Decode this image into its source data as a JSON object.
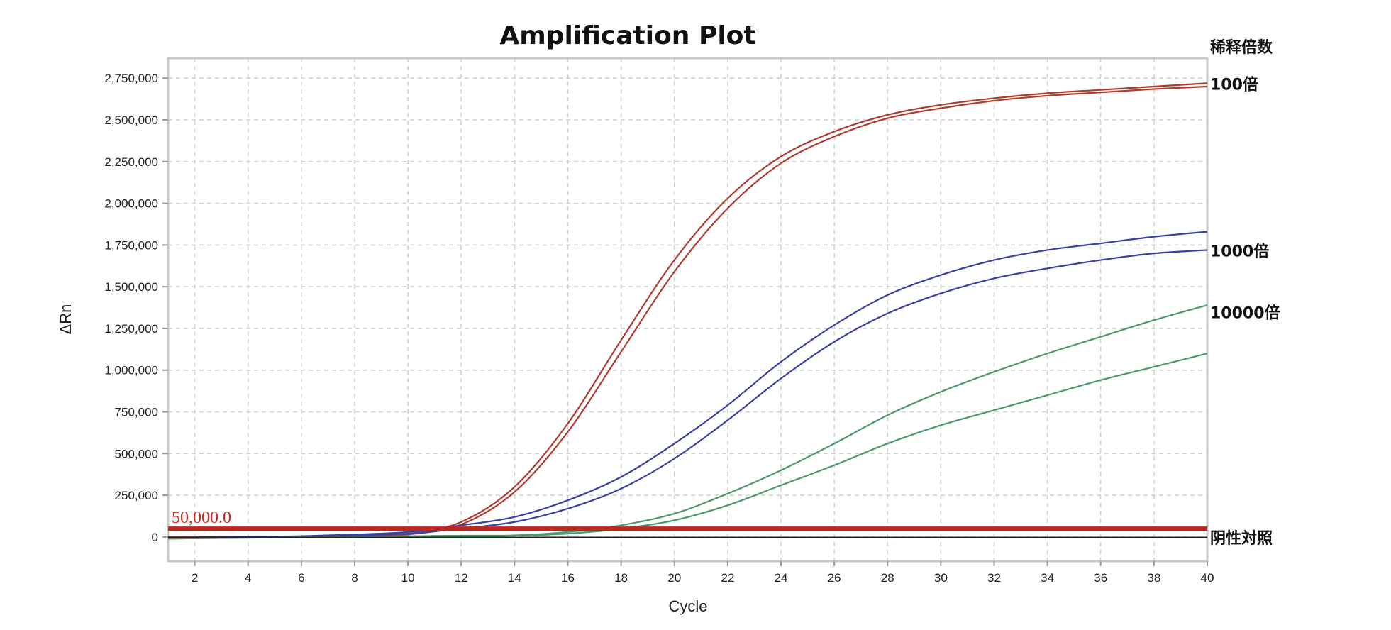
{
  "chart_data": {
    "type": "line",
    "title": "Amplification Plot",
    "xlabel": "Cycle",
    "ylabel": "ΔRn",
    "xlim": [
      1,
      40
    ],
    "ylim": [
      -145000,
      2870000
    ],
    "grid": true,
    "x_ticks": [
      2,
      4,
      6,
      8,
      10,
      12,
      14,
      16,
      18,
      20,
      22,
      24,
      26,
      28,
      30,
      32,
      34,
      36,
      38,
      40
    ],
    "x_tick_labels": [
      "2",
      "4",
      "6",
      "8",
      "10",
      "12",
      "14",
      "16",
      "18",
      "20",
      "22",
      "24",
      "26",
      "28",
      "30",
      "32",
      "34",
      "36",
      "38",
      "40"
    ],
    "y_ticks": [
      0,
      250000,
      500000,
      750000,
      1000000,
      1250000,
      1500000,
      1750000,
      2000000,
      2250000,
      2500000,
      2750000
    ],
    "y_tick_labels": [
      "0",
      "250,000",
      "500,000",
      "750,000",
      "1,000,000",
      "1,250,000",
      "1,500,000",
      "1,750,000",
      "2,000,000",
      "2,250,000",
      "2,500,000",
      "2,750,000"
    ],
    "x": [
      1,
      2,
      4,
      6,
      8,
      10,
      12,
      14,
      16,
      18,
      20,
      22,
      24,
      26,
      28,
      30,
      32,
      34,
      36,
      38,
      40
    ],
    "series": [
      {
        "name": "100倍 a",
        "group": "100倍",
        "color": "#b03a2e",
        "values": [
          0,
          0,
          0,
          0,
          5000,
          20000,
          90000,
          300000,
          680000,
          1180000,
          1660000,
          2030000,
          2280000,
          2430000,
          2530000,
          2590000,
          2630000,
          2660000,
          2680000,
          2700000,
          2720000
        ]
      },
      {
        "name": "100倍 b",
        "group": "100倍",
        "color": "#b03a2e",
        "values": [
          0,
          0,
          0,
          0,
          3000,
          15000,
          75000,
          270000,
          630000,
          1110000,
          1590000,
          1970000,
          2240000,
          2400000,
          2510000,
          2570000,
          2615000,
          2645000,
          2665000,
          2685000,
          2700000
        ]
      },
      {
        "name": "1000倍 a",
        "group": "1000倍",
        "color": "#3b3fa8",
        "values": [
          -5000,
          -3000,
          0,
          5000,
          15000,
          30000,
          70000,
          120000,
          220000,
          360000,
          560000,
          790000,
          1050000,
          1270000,
          1450000,
          1570000,
          1660000,
          1720000,
          1760000,
          1800000,
          1830000
        ]
      },
      {
        "name": "1000倍 b",
        "group": "1000倍",
        "color": "#3b3fa8",
        "values": [
          -5000,
          -3000,
          0,
          4000,
          10000,
          20000,
          50000,
          90000,
          170000,
          290000,
          470000,
          700000,
          950000,
          1170000,
          1340000,
          1460000,
          1550000,
          1610000,
          1660000,
          1700000,
          1720000
        ]
      },
      {
        "name": "10000倍 a",
        "group": "10000倍",
        "color": "#4c9a6a",
        "values": [
          -10000,
          -8000,
          -5000,
          -2000,
          0,
          5000,
          8000,
          10000,
          30000,
          70000,
          140000,
          260000,
          400000,
          560000,
          730000,
          870000,
          990000,
          1100000,
          1200000,
          1300000,
          1390000
        ]
      },
      {
        "name": "10000倍 b",
        "group": "10000倍",
        "color": "#4c9a6a",
        "values": [
          -10000,
          -8000,
          -5000,
          -2000,
          0,
          3000,
          5000,
          8000,
          20000,
          50000,
          100000,
          190000,
          310000,
          430000,
          560000,
          670000,
          760000,
          850000,
          940000,
          1020000,
          1100000
        ]
      },
      {
        "name": "阴性対照",
        "group": "阴性対照",
        "color": "#222222",
        "values": [
          -3000,
          -3000,
          -3000,
          -3000,
          -3000,
          -3000,
          -3000,
          -3000,
          -3000,
          -3000,
          -3000,
          -3000,
          -3000,
          -3000,
          -3000,
          -3000,
          -3000,
          -3000,
          -3000,
          -3000,
          -3000
        ]
      }
    ],
    "threshold": {
      "value": 50000,
      "label": "50,000.0",
      "color": "#c0261c"
    },
    "annotations": {
      "header": "稀释倍数",
      "labels": [
        {
          "text": "100倍",
          "y": 2720000
        },
        {
          "text": "1000倍",
          "y": 1720000
        },
        {
          "text": "10000倍",
          "y": 1350000
        },
        {
          "text": "阴性対照",
          "y": 0
        }
      ]
    }
  }
}
